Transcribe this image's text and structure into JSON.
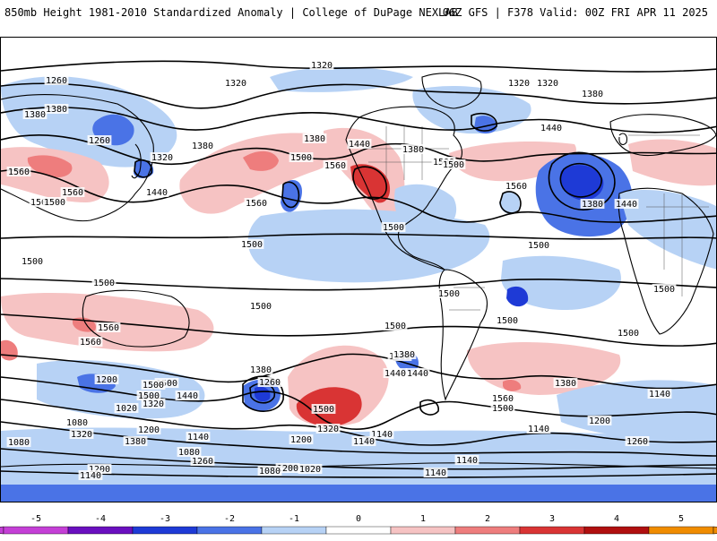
{
  "header": {
    "title_left": "850mb Height 1981-2010 Standardized Anomaly | College of DuPage NEXLAB",
    "title_right": "06Z GFS | F378 Valid: 00Z FRI APR 11 2025"
  },
  "map": {
    "projection": "global cylindrical",
    "contour_labels": [
      "1320",
      "1260",
      "1320",
      "1380",
      "1320",
      "1320",
      "1260",
      "1380",
      "1320",
      "1380",
      "1440",
      "1380",
      "1500",
      "1560",
      "1560",
      "1500",
      "1440",
      "1500",
      "1380",
      "1440",
      "1500",
      "1380",
      "1560",
      "1500",
      "1560",
      "1380",
      "1440",
      "1500",
      "1560",
      "1500",
      "1500",
      "1500",
      "1500",
      "1500",
      "1500",
      "1500",
      "1500",
      "1560",
      "1560",
      "1500",
      "1500",
      "1440",
      "1500",
      "1500",
      "1380",
      "1260",
      "1200",
      "1500",
      "1440",
      "1320",
      "1380",
      "1440",
      "1380",
      "1560",
      "1500",
      "1500",
      "1320",
      "1380",
      "1140",
      "1260",
      "1200",
      "1140",
      "1140",
      "1080",
      "1320",
      "1380",
      "1200",
      "1140",
      "1200",
      "1080",
      "1140",
      "1260",
      "1200",
      "1140",
      "1020",
      "1080",
      "1020",
      "1200",
      "1140",
      "1080",
      "1140"
    ],
    "anomaly_areas": [
      {
        "region": "Western North America",
        "sign": "positive",
        "peak": 3
      },
      {
        "region": "Eastern North Atlantic",
        "sign": "negative",
        "peak": -3
      },
      {
        "region": "Southern Pacific",
        "sign": "positive",
        "peak": 3
      },
      {
        "region": "Southern Ocean near 110W",
        "sign": "negative",
        "peak": -3
      },
      {
        "region": "Western Pacific",
        "sign": "negative",
        "peak": -2
      },
      {
        "region": "Central Asia",
        "sign": "positive",
        "peak": 2
      }
    ]
  },
  "colorbar": {
    "ticks": [
      "-5",
      "-4",
      "-3",
      "-2",
      "-1",
      "0",
      "1",
      "2",
      "3",
      "4",
      "5"
    ],
    "colors": {
      "m5": "#c43fd6",
      "m4": "#6a0fbf",
      "m3": "#1e3ad6",
      "m2": "#4a73e6",
      "m1": "#b7d2f5",
      "p0": "#ffffff",
      "p1": "#f6c3c3",
      "p2": "#ee7d7d",
      "p3": "#d93434",
      "p4": "#b00f0f",
      "p5": "#f08c00"
    }
  }
}
